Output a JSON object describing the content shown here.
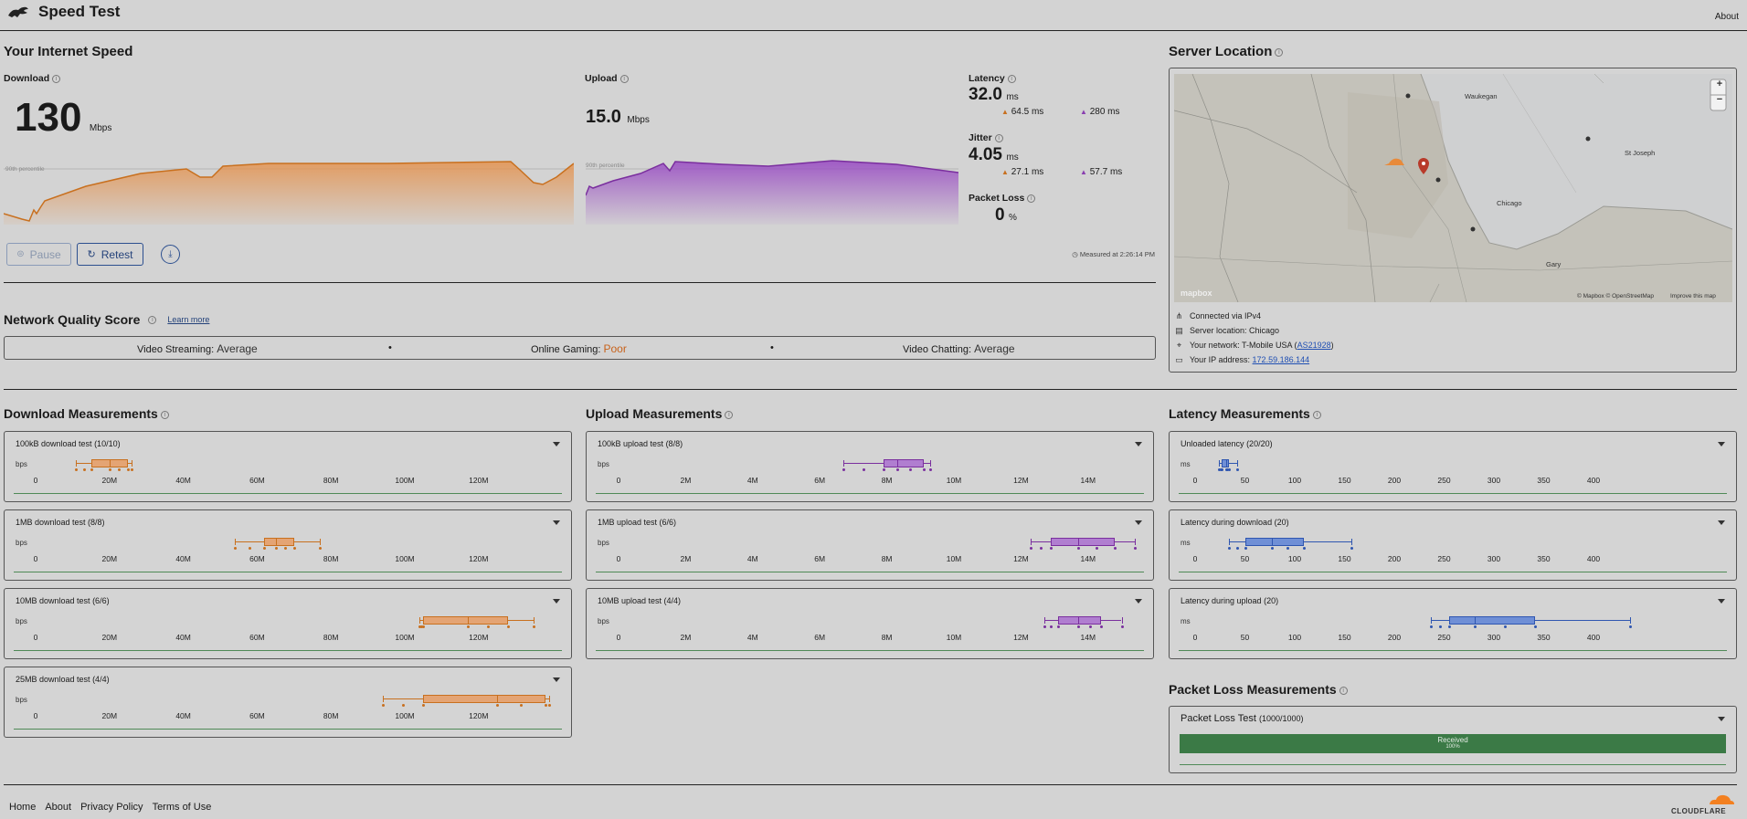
{
  "header": {
    "title": "Speed Test",
    "about": "About"
  },
  "speed": {
    "section_title": "Your Internet Speed",
    "download": {
      "label": "Download",
      "value": "130",
      "unit": "Mbps",
      "percentile_label": "90th percentile"
    },
    "upload": {
      "label": "Upload",
      "value": "15.0",
      "unit": "Mbps",
      "percentile_label": "90th percentile"
    },
    "latency": {
      "label": "Latency",
      "value": "32.0",
      "unit": "ms",
      "down": "64.5 ms",
      "up": "280 ms"
    },
    "jitter": {
      "label": "Jitter",
      "value": "4.05",
      "unit": "ms",
      "down": "27.1 ms",
      "up": "57.7 ms"
    },
    "packet_loss": {
      "label": "Packet Loss",
      "value": "0",
      "unit": "%"
    },
    "pause": "Pause",
    "retest": "Retest",
    "measured_at": "Measured at 2:26:14 PM"
  },
  "quality": {
    "title": "Network Quality Score",
    "learn_more": "Learn more",
    "items": [
      {
        "label": "Video Streaming:",
        "value": "Average",
        "color": "#333333"
      },
      {
        "label": "Online Gaming:",
        "value": "Poor",
        "color": "#c8621a"
      },
      {
        "label": "Video Chatting:",
        "value": "Average",
        "color": "#333333"
      }
    ]
  },
  "server": {
    "title": "Server Location",
    "map_labels": {
      "waukegan": "Waukegan",
      "st_joseph": "St Joseph",
      "chicago": "Chicago",
      "gary": "Gary",
      "mapbox": "mapbox",
      "attribution": "© Mapbox © OpenStreetMap",
      "improve": "Improve this map",
      "zoom_in": "+",
      "zoom_out": "−"
    },
    "connected": "Connected via IPv4",
    "location": "Server location: Chicago",
    "network_prefix": "Your network: T-Mobile USA (",
    "network_as": "AS21928",
    "network_suffix": ")",
    "ip_prefix": "Your IP address: ",
    "ip": "172.59.186.144"
  },
  "measurements": {
    "download_title": "Download Measurements",
    "upload_title": "Upload Measurements",
    "latency_title": "Latency Measurements",
    "packet_title": "Packet Loss Measurements",
    "bps": "bps",
    "ms": "ms",
    "download_ticks": [
      "0",
      "20M",
      "40M",
      "60M",
      "80M",
      "100M",
      "120M"
    ],
    "upload_ticks": [
      "0",
      "2M",
      "4M",
      "6M",
      "8M",
      "10M",
      "12M",
      "14M"
    ],
    "latency_ticks": [
      "0",
      "50",
      "100",
      "150",
      "200",
      "250",
      "300",
      "350",
      "400"
    ],
    "download_tests": [
      {
        "name": "100kB download test",
        "count": "(10/10)",
        "stats_mbps": {
          "min": 11,
          "q1": 15,
          "median": 20,
          "q3": 25,
          "max": 26
        }
      },
      {
        "name": "1MB download test",
        "count": "(8/8)",
        "stats_mbps": {
          "min": 54,
          "q1": 62,
          "median": 65,
          "q3": 70,
          "max": 77
        }
      },
      {
        "name": "10MB download test",
        "count": "(6/6)",
        "stats_mbps": {
          "min": 104,
          "q1": 105,
          "median": 117,
          "q3": 128,
          "max": 135
        }
      },
      {
        "name": "25MB download test",
        "count": "(4/4)",
        "stats_mbps": {
          "min": 94,
          "q1": 105,
          "median": 125,
          "q3": 138,
          "max": 139
        }
      }
    ],
    "upload_tests": [
      {
        "name": "100kB upload test",
        "count": "(8/8)",
        "stats_mbps": {
          "min": 6.7,
          "q1": 7.9,
          "median": 8.3,
          "q3": 9.1,
          "max": 9.3
        }
      },
      {
        "name": "1MB upload test",
        "count": "(6/6)",
        "stats_mbps": {
          "min": 12.3,
          "q1": 12.9,
          "median": 13.7,
          "q3": 14.8,
          "max": 15.4
        }
      },
      {
        "name": "10MB upload test",
        "count": "(4/4)",
        "stats_mbps": {
          "min": 12.7,
          "q1": 13.1,
          "median": 13.7,
          "q3": 14.4,
          "max": 15.0
        }
      }
    ],
    "latency_tests": [
      {
        "name": "Unloaded latency",
        "count": "(20/20)",
        "stats_ms": {
          "min": 24,
          "q1": 27,
          "median": 31,
          "q3": 34,
          "max": 42
        }
      },
      {
        "name": "Latency during download",
        "count": "(20)",
        "stats_ms": {
          "min": 34,
          "q1": 50,
          "median": 77,
          "q3": 109,
          "max": 157
        }
      },
      {
        "name": "Latency during upload",
        "count": "(20)",
        "stats_ms": {
          "min": 237,
          "q1": 255,
          "median": 281,
          "q3": 341,
          "max": 437
        }
      }
    ],
    "packet_test": {
      "name": "Packet Loss Test",
      "count": "(1000/1000)",
      "received": "Received",
      "percent": "100%",
      "received_fraction": 1.0
    }
  },
  "footer": {
    "links": [
      "Home",
      "About",
      "Privacy Policy",
      "Terms of Use"
    ],
    "brand": "CLOUDFLARE"
  },
  "colors": {
    "download": "#e8a060",
    "upload": "#a45fc4",
    "latency": "#3d67c2",
    "accent_green": "#3b7a46"
  }
}
